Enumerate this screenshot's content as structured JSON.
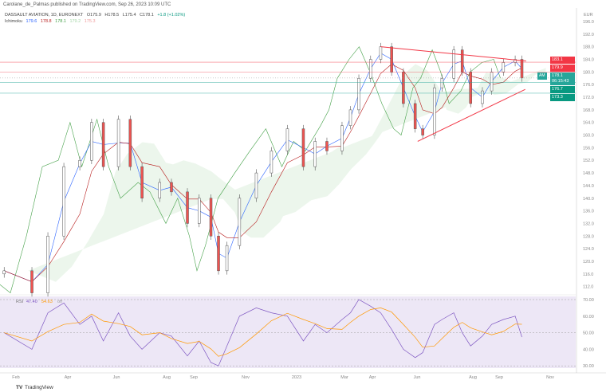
{
  "header": {
    "published": "Carolane_de_Palmas published on TradingView.com, Sep 26, 2023 10:09 UTC",
    "symbol": "DASSAULT AVIATION, 1D, EURONEXT",
    "open": "O175.9",
    "high": "H178.5",
    "low": "L175.4",
    "close": "C178.1",
    "change": "+1.8 (+1.02%)",
    "ichimoku_label": "Ichimoku",
    "ichimoku_values": [
      "179.6",
      "178.8",
      "178.1",
      "179.2",
      "175.3"
    ]
  },
  "colors": {
    "up": "#26a69a",
    "down": "#ef5350",
    "candle": "#555555",
    "tenkan": "#2962ff",
    "kijun": "#b71c1c",
    "lagging": "#43a047",
    "rsi": "#7e57c2",
    "rsi_ma": "#ff9800",
    "trend": "#f23645",
    "rsi_bg": "#ede7f6"
  },
  "price_axis": {
    "currency": "EUR",
    "ticks": [
      "196.0",
      "192.0",
      "188.0",
      "184.0",
      "180.0",
      "176.0",
      "172.0",
      "168.0",
      "164.0",
      "160.0",
      "156.0",
      "152.0",
      "148.0",
      "144.0",
      "140.0",
      "136.0",
      "132.0",
      "128.0",
      "124.0",
      "120.0",
      "116.0",
      "112.0"
    ]
  },
  "price_tags": [
    {
      "value": "183.1",
      "color": "#f23645"
    },
    {
      "value": "179.9",
      "color": "#f23645"
    },
    {
      "value": "178.1",
      "sub": "06:15:43",
      "color": "#26a69a"
    },
    {
      "value": "176.7",
      "color": "#089981"
    },
    {
      "value": "173.3",
      "color": "#089981"
    }
  ],
  "am_label": "AM",
  "rsi": {
    "label": "RSI",
    "value": "47.40",
    "ma": "54.63",
    "extra": "off",
    "ticks": [
      "70.00",
      "60.00",
      "50.00",
      "40.00",
      "30.00"
    ]
  },
  "time_axis": [
    "Feb",
    "Apr",
    "Jun",
    "Aug",
    "Sep",
    "Nov",
    "2023",
    "Mar",
    "Apr",
    "Jun",
    "Aug",
    "Sep",
    "Nov"
  ],
  "footer": "TradingView",
  "chart_data": {
    "type": "candlestick",
    "title": "DASSAULT AVIATION, 1D, EURONEXT",
    "ylim": [
      110,
      198
    ],
    "dates": [
      "2022-01-18",
      "2022-02-20",
      "2022-03-11",
      "2022-03-30",
      "2022-04-18",
      "2022-05-02",
      "2022-05-16",
      "2022-06-03",
      "2022-06-17",
      "2022-07-01",
      "2022-07-22",
      "2022-08-05",
      "2022-08-24",
      "2022-09-07",
      "2022-09-21",
      "2022-09-30",
      "2022-10-10",
      "2022-10-25",
      "2022-11-14",
      "2022-12-02",
      "2022-12-21",
      "2023-01-09",
      "2023-01-23",
      "2023-02-06",
      "2023-02-24",
      "2023-03-06",
      "2023-03-16",
      "2023-03-30",
      "2023-04-11",
      "2023-04-24",
      "2023-05-08",
      "2023-05-22",
      "2023-05-31",
      "2023-06-14",
      "2023-06-23",
      "2023-07-07",
      "2023-07-17",
      "2023-07-27",
      "2023-08-10",
      "2023-08-21",
      "2023-09-04",
      "2023-09-18",
      "2023-09-26"
    ],
    "close": [
      117,
      110,
      128,
      150,
      152,
      164,
      150,
      165,
      150,
      140,
      145,
      142,
      132,
      140,
      128,
      117,
      125,
      140,
      148,
      155,
      162,
      150,
      158,
      155,
      163,
      168,
      178,
      184,
      188,
      180,
      170,
      162,
      160,
      175,
      178,
      187,
      180,
      170,
      174,
      180,
      183,
      184,
      178.1
    ],
    "rsi": [
      50,
      40,
      62,
      68,
      55,
      60,
      45,
      62,
      48,
      40,
      50,
      48,
      36,
      45,
      32,
      30,
      42,
      60,
      65,
      62,
      60,
      45,
      55,
      50,
      58,
      62,
      70,
      66,
      62,
      52,
      40,
      35,
      38,
      55,
      58,
      62,
      50,
      42,
      48,
      55,
      58,
      60,
      47.4
    ],
    "horizontal_levels": [
      183.1,
      179.9,
      176.7,
      173.3
    ],
    "trendlines": [
      {
        "name": "resistance",
        "from": [
          "2023-04-11",
          188
        ],
        "to": [
          "2023-10-01",
          183.5
        ]
      },
      {
        "name": "support",
        "from": [
          "2023-05-25",
          158
        ],
        "to": [
          "2023-09-30",
          174.5
        ]
      }
    ],
    "rsi_levels": [
      70,
      50,
      30
    ]
  }
}
